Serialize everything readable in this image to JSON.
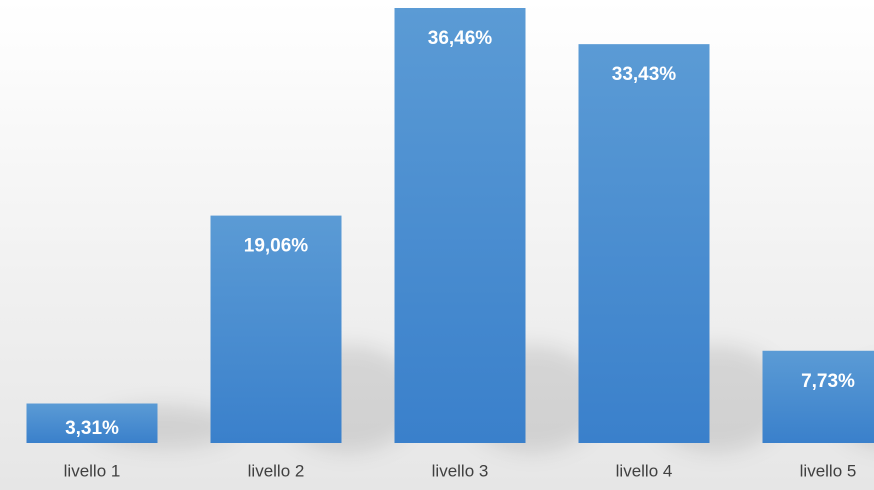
{
  "chart_data": {
    "type": "bar",
    "title": "",
    "xlabel": "",
    "ylabel": "",
    "categories": [
      "livello 1",
      "livello 2",
      "livello 3",
      "livello 4",
      "livello 5"
    ],
    "values": [
      3.31,
      19.06,
      36.46,
      33.43,
      7.73
    ],
    "data_labels": [
      "3,31%",
      "19,06%",
      "36,46%",
      "33,43%",
      "7,73%"
    ],
    "ylim": [
      0,
      36.46
    ],
    "grid": false,
    "legend": "none",
    "colors": {
      "bar_top": "#5B9BD5",
      "bar_bottom": "#3A80CB",
      "label_text": "#FFFFFF",
      "axis_text": "#404040",
      "background_top": "#FFFFFF",
      "background_bottom": "#E6E6E6"
    }
  }
}
